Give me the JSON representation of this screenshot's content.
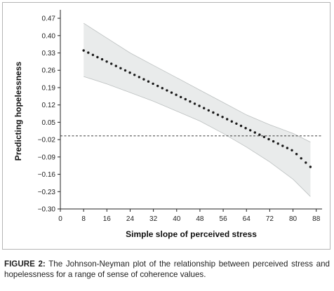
{
  "chart_data": {
    "type": "line",
    "xlabel": "Simple slope of perceived stress",
    "ylabel": "Predicting hopelessness",
    "x_ticks": [
      0,
      8,
      16,
      24,
      32,
      40,
      48,
      56,
      64,
      72,
      80,
      88
    ],
    "y_ticks": [
      -0.3,
      -0.23,
      -0.16,
      -0.09,
      -0.02,
      0.05,
      0.12,
      0.19,
      0.26,
      0.33,
      0.4,
      0.47
    ],
    "xlim": [
      0,
      90
    ],
    "ylim": [
      -0.3,
      0.49
    ],
    "series": [
      {
        "role": "estimate",
        "style": "dotted",
        "x": [
          8,
          16,
          24,
          32,
          40,
          48,
          56,
          64,
          72,
          80,
          86
        ],
        "y": [
          0.34,
          0.295,
          0.25,
          0.205,
          0.16,
          0.115,
          0.07,
          0.025,
          -0.02,
          -0.065,
          -0.13
        ]
      },
      {
        "role": "confidence_band",
        "x": [
          8,
          16,
          24,
          32,
          40,
          48,
          56,
          64,
          72,
          80,
          86
        ],
        "upper": [
          0.45,
          0.39,
          0.33,
          0.28,
          0.23,
          0.18,
          0.13,
          0.08,
          0.04,
          0.005,
          -0.03
        ],
        "lower": [
          0.235,
          0.205,
          0.17,
          0.135,
          0.095,
          0.055,
          0.005,
          -0.05,
          -0.11,
          -0.18,
          -0.25
        ]
      }
    ],
    "reference_line": {
      "y": -0.005,
      "style": "dashed"
    },
    "grid": false,
    "legend": "none",
    "colors": {
      "band": "#e9ebeb",
      "band_edge": "#bcc0c0",
      "points": "#1a1a1a",
      "axis": "#222222"
    }
  },
  "caption": {
    "label": "FIGURE 2:",
    "text": " The Johnson-Neyman plot of the relationship between perceived stress and hopelessness for a range of sense of coherence values."
  }
}
